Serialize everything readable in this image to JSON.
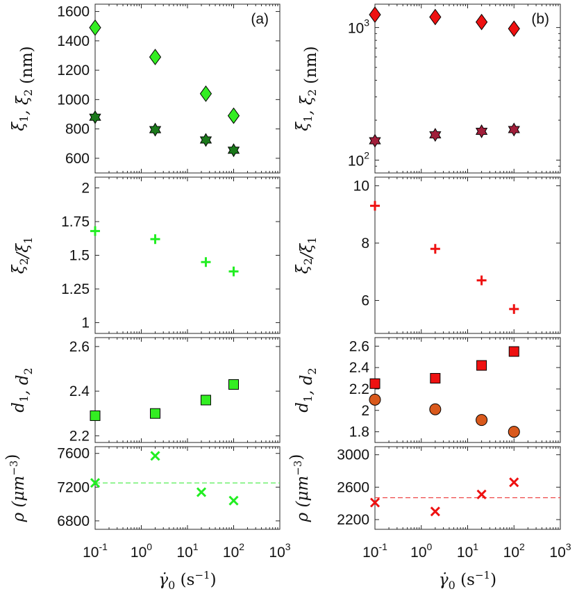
{
  "figure": {
    "x_axis_label": "γ̇₀ (s⁻¹)",
    "x_axis_label_html": "γ̇0 (s−1)"
  },
  "chart_data": [
    {
      "id": "a-xi",
      "panel_label": "(a)",
      "type": "scatter",
      "ylabel": "ξ1, ξ2 (nm)",
      "xscale": "log",
      "xlim": [
        0.1,
        1000
      ],
      "yscale": "linear",
      "ylim": [
        500,
        1650
      ],
      "yticks": [
        600,
        800,
        1000,
        1200,
        1400,
        1600
      ],
      "yticklabels": [
        "600",
        "800",
        "1000",
        "1200",
        "1400",
        "1600"
      ],
      "series": [
        {
          "name": "ξ2",
          "marker": "diamond",
          "color": "#33ee22",
          "x": [
            0.1,
            2,
            25,
            100
          ],
          "y": [
            1490,
            1290,
            1040,
            890
          ]
        },
        {
          "name": "ξ1",
          "marker": "hexagram",
          "color": "#1b7a1b",
          "x": [
            0.1,
            2,
            25,
            100
          ],
          "y": [
            880,
            795,
            725,
            655
          ]
        }
      ]
    },
    {
      "id": "b-xi",
      "panel_label": "(b)",
      "type": "scatter",
      "ylabel": "ξ1, ξ2 (nm)",
      "xscale": "log",
      "xlim": [
        0.1,
        1000
      ],
      "yscale": "log",
      "ylim": [
        80,
        1500
      ],
      "yticks": [
        100,
        1000
      ],
      "yticklabels": [
        "10^2",
        "10^3"
      ],
      "series": [
        {
          "name": "ξ2",
          "marker": "diamond",
          "color": "#ee1111",
          "x": [
            0.1,
            2,
            20,
            100
          ],
          "y": [
            1250,
            1200,
            1100,
            980
          ]
        },
        {
          "name": "ξ1",
          "marker": "hexagram",
          "color": "#a11e3a",
          "x": [
            0.1,
            2,
            20,
            100
          ],
          "y": [
            140,
            155,
            165,
            170
          ]
        }
      ]
    },
    {
      "id": "a-ratio",
      "type": "scatter",
      "ylabel": "ξ2/ξ1",
      "xscale": "log",
      "xlim": [
        0.1,
        1000
      ],
      "yscale": "linear",
      "ylim": [
        0.92,
        2.08
      ],
      "yticks": [
        1,
        1.25,
        1.5,
        1.75,
        2
      ],
      "yticklabels": [
        "1",
        "1.25",
        "1.5",
        "1.75",
        "2"
      ],
      "series": [
        {
          "name": "ξ2/ξ1",
          "marker": "plus",
          "color": "#22ee22",
          "x": [
            0.1,
            2,
            25,
            100
          ],
          "y": [
            1.68,
            1.62,
            1.45,
            1.38
          ]
        }
      ]
    },
    {
      "id": "b-ratio",
      "type": "scatter",
      "ylabel": "ξ2/ξ1",
      "xscale": "log",
      "xlim": [
        0.1,
        1000
      ],
      "yscale": "linear",
      "ylim": [
        4.85,
        10.3
      ],
      "yticks": [
        6,
        8,
        10
      ],
      "yticklabels": [
        "6",
        "8",
        "10"
      ],
      "series": [
        {
          "name": "ξ2/ξ1",
          "marker": "plus",
          "color": "#ee1111",
          "x": [
            0.1,
            2,
            20,
            100
          ],
          "y": [
            9.3,
            7.8,
            6.7,
            5.7
          ]
        }
      ]
    },
    {
      "id": "a-d",
      "type": "scatter",
      "ylabel": "d1, d2",
      "xscale": "log",
      "xlim": [
        0.1,
        1000
      ],
      "yscale": "linear",
      "ylim": [
        2.17,
        2.64
      ],
      "yticks": [
        2.2,
        2.4,
        2.6
      ],
      "yticklabels": [
        "2.2",
        "2.4",
        "2.6"
      ],
      "series": [
        {
          "name": "d",
          "marker": "square",
          "color": "#33ee22",
          "x": [
            0.1,
            2,
            25,
            100
          ],
          "y": [
            2.29,
            2.3,
            2.36,
            2.43
          ]
        }
      ]
    },
    {
      "id": "b-d",
      "type": "scatter",
      "ylabel": "d1, d2",
      "xscale": "log",
      "xlim": [
        0.1,
        1000
      ],
      "yscale": "linear",
      "ylim": [
        1.7,
        2.68
      ],
      "yticks": [
        1.8,
        2,
        2.2,
        2.4,
        2.6
      ],
      "yticklabels": [
        "1.8",
        "2",
        "2.2",
        "2.4",
        "2.6"
      ],
      "series": [
        {
          "name": "d2",
          "marker": "square",
          "color": "#ee1111",
          "x": [
            0.1,
            2,
            20,
            100
          ],
          "y": [
            2.25,
            2.3,
            2.42,
            2.55
          ]
        },
        {
          "name": "d1",
          "marker": "circle",
          "color": "#d9591c",
          "x": [
            0.1,
            2,
            20,
            100
          ],
          "y": [
            2.1,
            2.01,
            1.91,
            1.8
          ]
        }
      ]
    },
    {
      "id": "a-rho",
      "type": "scatter",
      "ylabel": "ρ (μm−3)",
      "xscale": "log",
      "xlim": [
        0.1,
        1000
      ],
      "xticklabels": [
        "10^-1",
        "10^0",
        "10^1",
        "10^2",
        "10^3"
      ],
      "yscale": "linear",
      "ylim": [
        6700,
        7680
      ],
      "yticks": [
        6800,
        7200,
        7600
      ],
      "yticklabels": [
        "6800",
        "7200",
        "7600"
      ],
      "series": [
        {
          "name": "ρ",
          "marker": "x",
          "color": "#22ee22",
          "x": [
            0.1,
            2,
            20,
            100
          ],
          "y": [
            7250,
            7570,
            7140,
            7040
          ]
        }
      ],
      "reference_line": {
        "y": 7250,
        "style": "dashed",
        "color": "#55ee55"
      }
    },
    {
      "id": "b-rho",
      "type": "scatter",
      "ylabel": "ρ (μm−3)",
      "xscale": "log",
      "xlim": [
        0.1,
        1000
      ],
      "xticklabels": [
        "10^-1",
        "10^0",
        "10^1",
        "10^2",
        "10^3"
      ],
      "yscale": "linear",
      "ylim": [
        2080,
        3100
      ],
      "yticks": [
        2200,
        2600,
        3000
      ],
      "yticklabels": [
        "2200",
        "2600",
        "3000"
      ],
      "series": [
        {
          "name": "ρ",
          "marker": "x",
          "color": "#ee1111",
          "x": [
            0.1,
            2,
            20,
            100
          ],
          "y": [
            2410,
            2300,
            2510,
            2660
          ]
        }
      ],
      "reference_line": {
        "y": 2470,
        "style": "dashed",
        "color": "#ee4444"
      }
    }
  ]
}
